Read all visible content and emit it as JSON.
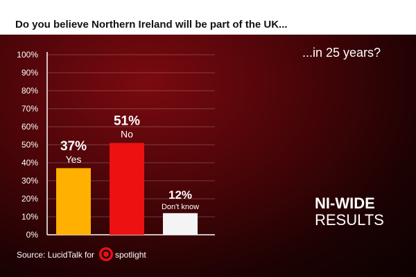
{
  "question": "Do you believe Northern Ireland will be part of the UK...",
  "subquestion": "...in 25 years?",
  "results_label": {
    "line1": "NI-WIDE",
    "line2": "RESULTS"
  },
  "source": {
    "text": "Source: LucidTalk for",
    "logo_icon": "spotlight-logo-icon",
    "logo_text": "spotlight"
  },
  "colors": {
    "yes": "#ffb000",
    "no": "#ee1111",
    "dont_know": "#f4f4f4",
    "header": "#ffffff",
    "background": "#4a0508"
  },
  "chart_data": {
    "type": "bar",
    "title": "",
    "xlabel": "",
    "ylabel": "",
    "ylim": [
      0,
      100
    ],
    "yticks": [
      "0%",
      "10%",
      "20%",
      "30%",
      "40%",
      "50%",
      "60%",
      "70%",
      "80%",
      "90%",
      "100%"
    ],
    "categories": [
      "Yes",
      "No",
      "Don't know"
    ],
    "values": [
      37,
      51,
      12
    ],
    "value_labels": [
      "37%",
      "51%",
      "12%"
    ],
    "grid": true
  }
}
